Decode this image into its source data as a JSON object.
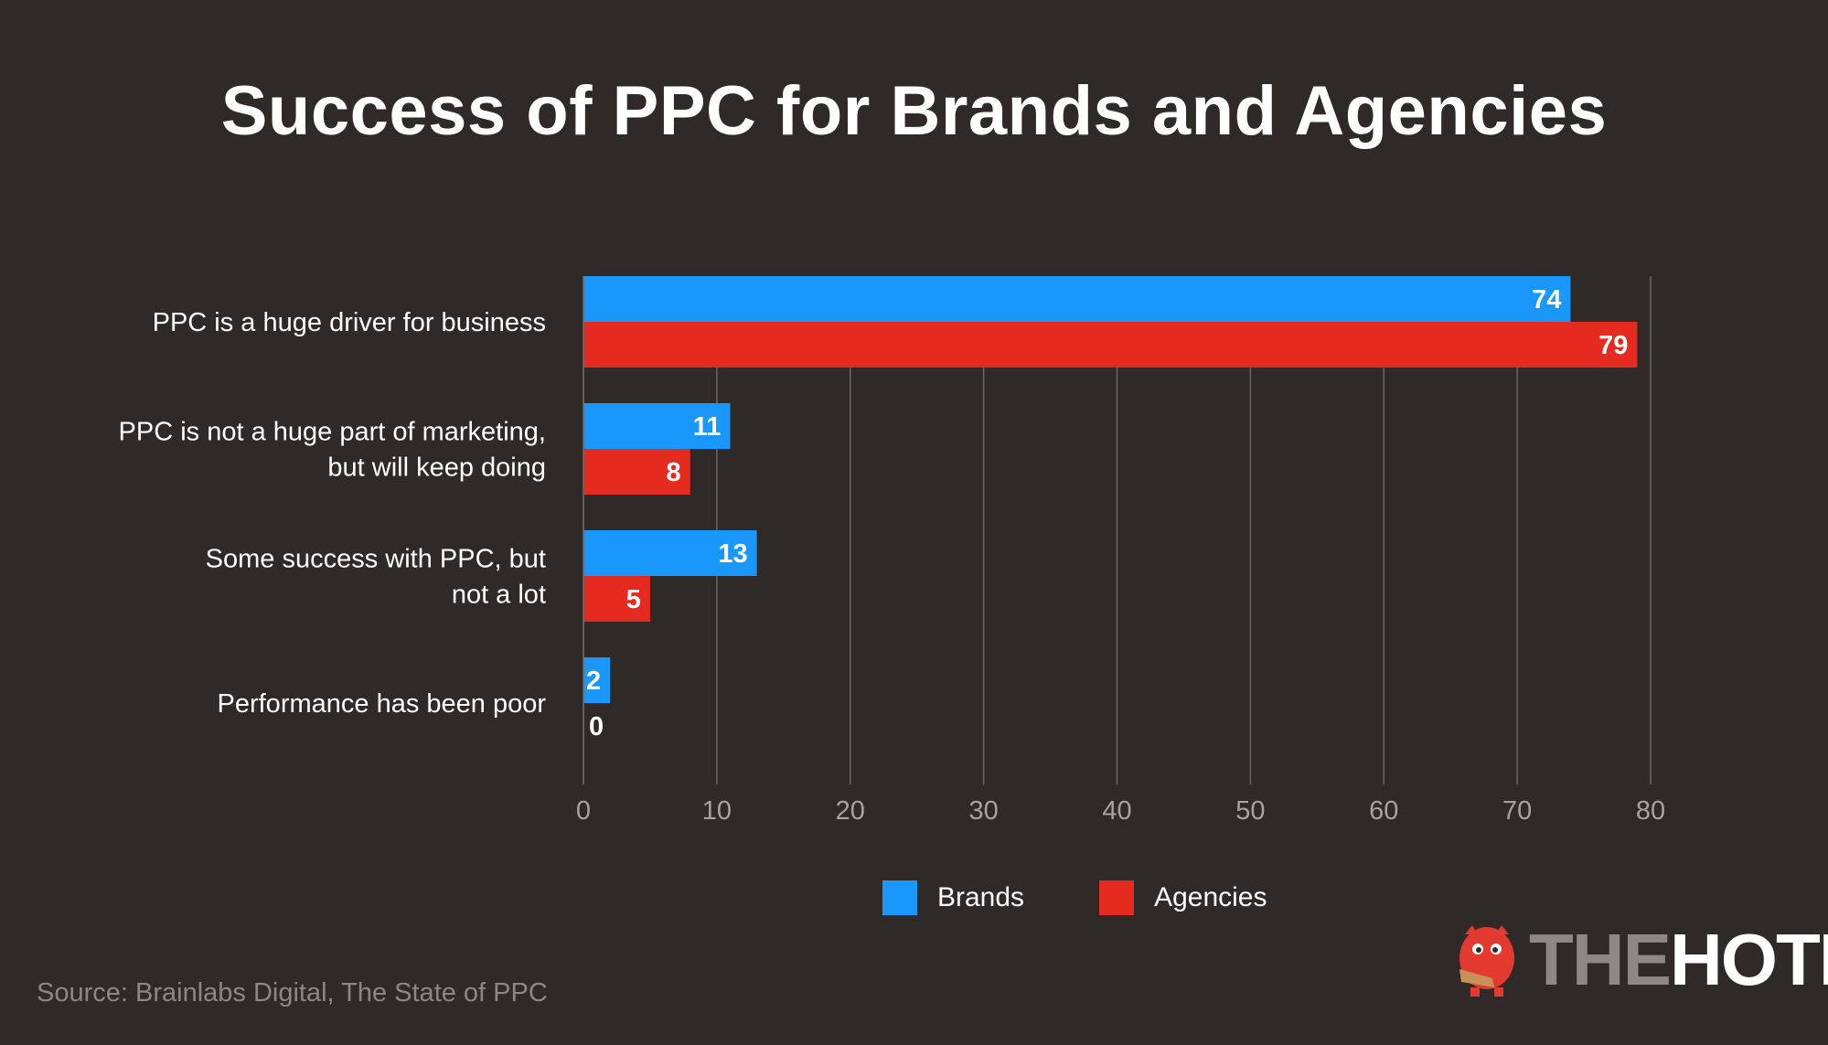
{
  "title": "Success of PPC for Brands and Agencies",
  "source": "Source: Brainlabs Digital, The State of PPC",
  "logo": {
    "the": "THE",
    "hoth": "HOTH"
  },
  "colors": {
    "background": "#2f2a28",
    "brands": "#1a97fb",
    "agencies": "#e52b1f",
    "grid": "#6b6664",
    "tick": "#a8a29f"
  },
  "chart_data": {
    "type": "bar",
    "orientation": "horizontal",
    "title": "Success of PPC for Brands and Agencies",
    "categories": [
      [
        "PPC is a huge driver for business"
      ],
      [
        "PPC is not a huge part of marketing,",
        "but will keep doing"
      ],
      [
        "Some success with PPC, but",
        "not a lot"
      ],
      [
        "Performance has been poor"
      ]
    ],
    "series": [
      {
        "name": "Brands",
        "color": "#1a97fb",
        "values": [
          74,
          11,
          13,
          2
        ]
      },
      {
        "name": "Agencies",
        "color": "#e52b1f",
        "values": [
          79,
          8,
          5,
          0
        ]
      }
    ],
    "xlim": [
      0,
      80
    ],
    "xticks": [
      0,
      10,
      20,
      30,
      40,
      50,
      60,
      70,
      80
    ],
    "grid": "vertical",
    "legend": "bottom-center"
  }
}
